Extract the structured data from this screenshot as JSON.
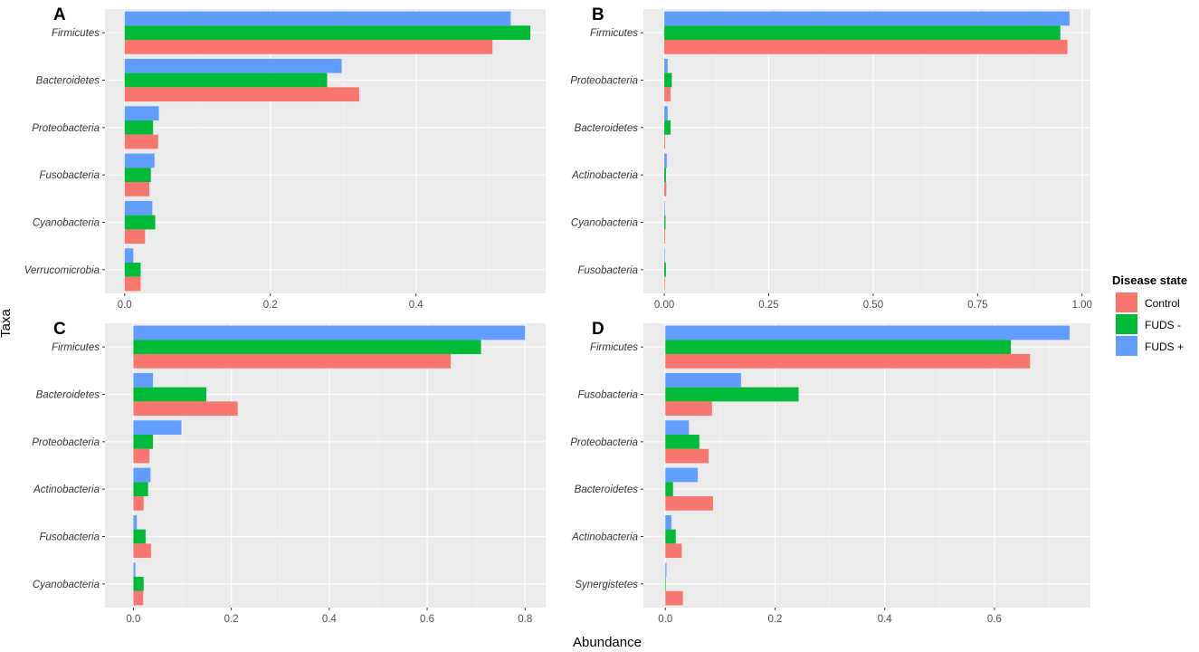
{
  "chart_data": [
    {
      "panel": "A",
      "type": "bar",
      "orientation": "horizontal",
      "categories": [
        "Firmicutes",
        "Bacteroidetes",
        "Proteobacteria",
        "Fusobacteria",
        "Cyanobacteria",
        "Verrucomicrobia"
      ],
      "series": [
        {
          "name": "Control",
          "values": [
            0.505,
            0.322,
            0.046,
            0.034,
            0.028,
            0.022
          ]
        },
        {
          "name": "FUDS -",
          "values": [
            0.557,
            0.278,
            0.039,
            0.036,
            0.042,
            0.022
          ]
        },
        {
          "name": "FUDS +",
          "values": [
            0.53,
            0.298,
            0.047,
            0.041,
            0.038,
            0.012
          ]
        }
      ],
      "xlim": [
        -0.027,
        0.578
      ],
      "xticks": [
        0.0,
        0.2,
        0.4
      ],
      "xtick_labels": [
        "0.0",
        "0.2",
        "0.4"
      ]
    },
    {
      "panel": "B",
      "type": "bar",
      "orientation": "horizontal",
      "categories": [
        "Firmicutes",
        "Proteobacteria",
        "Bacteroidetes",
        "Actinobacteria",
        "Cyanobacteria",
        "Fusobacteria"
      ],
      "series": [
        {
          "name": "Control",
          "values": [
            0.965,
            0.015,
            0.002,
            0.005,
            0.002,
            0.001
          ]
        },
        {
          "name": "FUDS -",
          "values": [
            0.948,
            0.018,
            0.015,
            0.004,
            0.003,
            0.004
          ]
        },
        {
          "name": "FUDS +",
          "values": [
            0.97,
            0.008,
            0.008,
            0.006,
            0.001,
            0.001
          ]
        }
      ],
      "xlim": [
        -0.05,
        1.02
      ],
      "xticks": [
        0.0,
        0.25,
        0.5,
        0.75,
        1.0
      ],
      "xtick_labels": [
        "0.00",
        "0.25",
        "0.50",
        "0.75",
        "1.00"
      ]
    },
    {
      "panel": "C",
      "type": "bar",
      "orientation": "horizontal",
      "categories": [
        "Firmicutes",
        "Bacteroidetes",
        "Proteobacteria",
        "Actinobacteria",
        "Fusobacteria",
        "Cyanobacteria"
      ],
      "series": [
        {
          "name": "Control",
          "values": [
            0.648,
            0.213,
            0.033,
            0.021,
            0.036,
            0.02
          ]
        },
        {
          "name": "FUDS -",
          "values": [
            0.71,
            0.149,
            0.04,
            0.03,
            0.025,
            0.021
          ]
        },
        {
          "name": "FUDS +",
          "values": [
            0.8,
            0.04,
            0.098,
            0.035,
            0.007,
            0.004
          ]
        }
      ],
      "xlim": [
        -0.058,
        0.842
      ],
      "xticks": [
        0.0,
        0.2,
        0.4,
        0.6,
        0.8
      ],
      "xtick_labels": [
        "0.0",
        "0.2",
        "0.4",
        "0.6",
        "0.8"
      ]
    },
    {
      "panel": "D",
      "type": "bar",
      "orientation": "horizontal",
      "categories": [
        "Firmicutes",
        "Fusobacteria",
        "Proteobacteria",
        "Bacteroidetes",
        "Actinobacteria",
        "Synergistetes"
      ],
      "series": [
        {
          "name": "Control",
          "values": [
            0.665,
            0.085,
            0.079,
            0.087,
            0.03,
            0.032
          ]
        },
        {
          "name": "FUDS -",
          "values": [
            0.63,
            0.243,
            0.062,
            0.014,
            0.019,
            0.0
          ]
        },
        {
          "name": "FUDS +",
          "values": [
            0.737,
            0.138,
            0.043,
            0.059,
            0.011,
            0.002
          ]
        }
      ],
      "xlim": [
        -0.04,
        0.775
      ],
      "xticks": [
        0.0,
        0.2,
        0.4,
        0.6
      ],
      "xtick_labels": [
        "0.0",
        "0.2",
        "0.4",
        "0.6"
      ]
    }
  ],
  "axis": {
    "xlabel": "Abundance",
    "ylabel": "Taxa"
  },
  "legend": {
    "title": "Disease state",
    "items": [
      {
        "name": "Control",
        "color": "#F8766D"
      },
      {
        "name": "FUDS -",
        "color": "#00BA38"
      },
      {
        "name": "FUDS +",
        "color": "#619CFF"
      }
    ]
  },
  "colors": {
    "panel_bg": "#EBEBEB",
    "grid_major": "#FFFFFF",
    "grid_minor": "#F5F5F5"
  }
}
